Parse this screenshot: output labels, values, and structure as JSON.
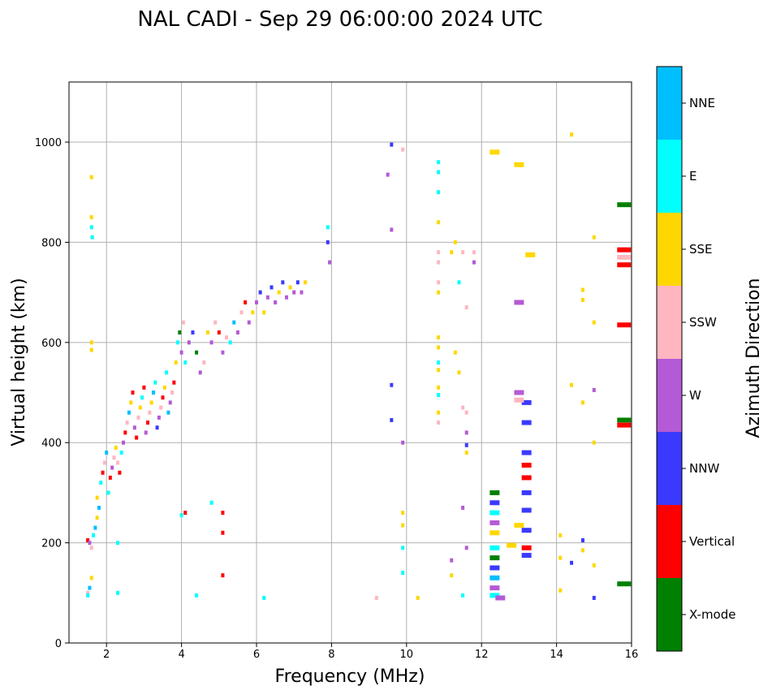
{
  "chart_data": {
    "type": "scatter",
    "title": "NAL CADI - Sep 29 06:00:00 2024 UTC",
    "xlabel": "Frequency (MHz)",
    "ylabel": "Virtual height (km)",
    "xlim": [
      1,
      16
    ],
    "ylim": [
      0,
      1120
    ],
    "xticks": [
      2,
      4,
      6,
      8,
      10,
      12,
      14,
      16
    ],
    "yticks": [
      0,
      200,
      400,
      600,
      800,
      1000
    ],
    "grid": true,
    "colorbar": {
      "label": "Azimuth Direction",
      "categories": [
        {
          "name": "X-mode",
          "color": "#008000"
        },
        {
          "name": "Vertical",
          "color": "#ff0000"
        },
        {
          "name": "NNW",
          "color": "#3a3aff"
        },
        {
          "name": "W",
          "color": "#b45ad6"
        },
        {
          "name": "SSW",
          "color": "#ffb6c1"
        },
        {
          "name": "SSE",
          "color": "#ffd700"
        },
        {
          "name": "E",
          "color": "#00ffff"
        },
        {
          "name": "NNE",
          "color": "#00bfff"
        }
      ]
    },
    "points": [
      [
        1.5,
        100,
        4
      ],
      [
        1.5,
        95,
        6
      ],
      [
        1.55,
        110,
        7
      ],
      [
        1.6,
        130,
        5
      ],
      [
        1.5,
        205,
        1
      ],
      [
        1.55,
        200,
        3
      ],
      [
        1.6,
        190,
        4
      ],
      [
        1.65,
        215,
        6
      ],
      [
        1.7,
        230,
        7
      ],
      [
        1.75,
        250,
        5
      ],
      [
        1.8,
        270,
        7
      ],
      [
        1.75,
        290,
        5
      ],
      [
        1.85,
        320,
        6
      ],
      [
        1.9,
        340,
        1
      ],
      [
        1.95,
        360,
        4
      ],
      [
        2.0,
        380,
        7
      ],
      [
        2.05,
        300,
        6
      ],
      [
        2.1,
        330,
        1
      ],
      [
        2.15,
        350,
        3
      ],
      [
        2.2,
        370,
        4
      ],
      [
        2.25,
        390,
        5
      ],
      [
        2.3,
        360,
        4
      ],
      [
        2.35,
        340,
        1
      ],
      [
        2.4,
        380,
        6
      ],
      [
        2.45,
        400,
        3
      ],
      [
        2.5,
        420,
        1
      ],
      [
        2.55,
        440,
        4
      ],
      [
        2.6,
        460,
        7
      ],
      [
        2.65,
        480,
        5
      ],
      [
        2.7,
        500,
        1
      ],
      [
        2.75,
        430,
        3
      ],
      [
        2.8,
        410,
        1
      ],
      [
        2.85,
        450,
        4
      ],
      [
        2.9,
        470,
        5
      ],
      [
        2.95,
        490,
        6
      ],
      [
        3.0,
        510,
        1
      ],
      [
        3.05,
        420,
        3
      ],
      [
        3.1,
        440,
        1
      ],
      [
        3.15,
        460,
        4
      ],
      [
        3.2,
        480,
        5
      ],
      [
        3.25,
        500,
        7
      ],
      [
        3.3,
        520,
        6
      ],
      [
        3.35,
        430,
        2
      ],
      [
        3.4,
        450,
        3
      ],
      [
        3.45,
        470,
        4
      ],
      [
        3.5,
        490,
        1
      ],
      [
        3.55,
        510,
        5
      ],
      [
        3.6,
        540,
        6
      ],
      [
        3.65,
        460,
        7
      ],
      [
        3.7,
        480,
        3
      ],
      [
        3.75,
        500,
        4
      ],
      [
        3.8,
        520,
        1
      ],
      [
        3.85,
        560,
        5
      ],
      [
        3.9,
        600,
        6
      ],
      [
        3.95,
        620,
        0
      ],
      [
        4.0,
        580,
        3
      ],
      [
        4.05,
        640,
        4
      ],
      [
        4.1,
        560,
        6
      ],
      [
        4.2,
        600,
        3
      ],
      [
        4.3,
        620,
        2
      ],
      [
        4.4,
        580,
        0
      ],
      [
        4.5,
        540,
        3
      ],
      [
        4.6,
        560,
        4
      ],
      [
        4.7,
        620,
        5
      ],
      [
        4.8,
        600,
        3
      ],
      [
        4.9,
        640,
        4
      ],
      [
        5.0,
        620,
        1
      ],
      [
        5.1,
        580,
        3
      ],
      [
        5.2,
        610,
        4
      ],
      [
        5.3,
        600,
        6
      ],
      [
        5.4,
        640,
        7
      ],
      [
        5.5,
        620,
        3
      ],
      [
        5.6,
        660,
        4
      ],
      [
        5.7,
        680,
        1
      ],
      [
        5.8,
        640,
        3
      ],
      [
        5.9,
        660,
        5
      ],
      [
        6.0,
        680,
        3
      ],
      [
        6.1,
        700,
        2
      ],
      [
        6.2,
        660,
        5
      ],
      [
        6.3,
        690,
        3
      ],
      [
        6.4,
        710,
        2
      ],
      [
        6.5,
        680,
        3
      ],
      [
        6.6,
        700,
        5
      ],
      [
        6.7,
        720,
        2
      ],
      [
        6.8,
        690,
        3
      ],
      [
        6.9,
        710,
        5
      ],
      [
        7.0,
        700,
        3
      ],
      [
        7.1,
        720,
        2
      ],
      [
        7.2,
        700,
        3
      ],
      [
        7.3,
        720,
        5
      ],
      [
        7.9,
        830,
        6
      ],
      [
        7.9,
        800,
        2
      ],
      [
        7.95,
        760,
        3
      ],
      [
        1.6,
        850,
        5
      ],
      [
        1.6,
        830,
        6
      ],
      [
        1.62,
        810,
        6
      ],
      [
        1.6,
        930,
        5
      ],
      [
        1.6,
        600,
        5
      ],
      [
        1.6,
        585,
        5
      ],
      [
        4.0,
        255,
        6
      ],
      [
        4.1,
        260,
        1
      ],
      [
        4.8,
        280,
        6
      ],
      [
        5.1,
        260,
        1
      ],
      [
        5.1,
        220,
        1
      ],
      [
        5.1,
        135,
        1
      ],
      [
        4.4,
        95,
        6
      ],
      [
        2.3,
        100,
        6
      ],
      [
        6.2,
        90,
        6
      ],
      [
        2.3,
        200,
        6
      ],
      [
        9.6,
        995,
        2
      ],
      [
        9.9,
        985,
        4
      ],
      [
        9.5,
        935,
        3
      ],
      [
        9.6,
        825,
        3
      ],
      [
        9.6,
        515,
        2
      ],
      [
        9.6,
        445,
        2
      ],
      [
        9.9,
        400,
        3
      ],
      [
        9.9,
        260,
        5
      ],
      [
        9.9,
        235,
        5
      ],
      [
        9.9,
        190,
        6
      ],
      [
        9.9,
        140,
        6
      ],
      [
        9.2,
        90,
        4
      ],
      [
        10.3,
        90,
        5
      ],
      [
        10.85,
        960,
        6
      ],
      [
        10.85,
        940,
        6
      ],
      [
        10.85,
        900,
        6
      ],
      [
        10.85,
        840,
        5
      ],
      [
        10.85,
        780,
        4
      ],
      [
        10.85,
        760,
        4
      ],
      [
        10.85,
        720,
        4
      ],
      [
        10.85,
        700,
        5
      ],
      [
        10.85,
        610,
        5
      ],
      [
        10.85,
        590,
        5
      ],
      [
        10.85,
        560,
        6
      ],
      [
        10.85,
        545,
        5
      ],
      [
        10.85,
        510,
        5
      ],
      [
        10.85,
        495,
        6
      ],
      [
        10.85,
        460,
        5
      ],
      [
        10.85,
        440,
        4
      ],
      [
        11.3,
        800,
        5
      ],
      [
        11.2,
        780,
        5
      ],
      [
        11.5,
        780,
        4
      ],
      [
        11.8,
        780,
        4
      ],
      [
        11.8,
        760,
        3
      ],
      [
        11.6,
        670,
        4
      ],
      [
        11.4,
        720,
        6
      ],
      [
        11.3,
        580,
        5
      ],
      [
        11.4,
        540,
        5
      ],
      [
        11.5,
        470,
        4
      ],
      [
        11.6,
        460,
        4
      ],
      [
        11.6,
        420,
        3
      ],
      [
        11.6,
        395,
        2
      ],
      [
        11.6,
        380,
        5
      ],
      [
        11.5,
        270,
        3
      ],
      [
        11.6,
        190,
        3
      ],
      [
        11.2,
        165,
        3
      ],
      [
        11.2,
        135,
        5
      ],
      [
        11.5,
        95,
        6
      ],
      [
        12.35,
        300,
        0
      ],
      [
        12.35,
        280,
        2
      ],
      [
        12.35,
        260,
        6
      ],
      [
        12.35,
        240,
        3
      ],
      [
        12.35,
        220,
        5
      ],
      [
        12.35,
        190,
        6
      ],
      [
        12.35,
        170,
        0
      ],
      [
        12.35,
        150,
        2
      ],
      [
        12.35,
        130,
        7
      ],
      [
        12.35,
        110,
        3
      ],
      [
        12.35,
        95,
        6
      ],
      [
        12.35,
        980,
        5
      ],
      [
        12.5,
        90,
        3
      ],
      [
        13.2,
        480,
        2
      ],
      [
        13.2,
        440,
        2
      ],
      [
        13.2,
        380,
        2
      ],
      [
        13.2,
        355,
        1
      ],
      [
        13.2,
        330,
        1
      ],
      [
        13.2,
        300,
        2
      ],
      [
        13.2,
        265,
        2
      ],
      [
        13.2,
        225,
        2
      ],
      [
        13.2,
        190,
        1
      ],
      [
        13.2,
        175,
        2
      ],
      [
        13.0,
        500,
        3
      ],
      [
        13.0,
        485,
        4
      ],
      [
        13.0,
        680,
        3
      ],
      [
        13.0,
        955,
        5
      ],
      [
        13.0,
        235,
        5
      ],
      [
        12.8,
        195,
        5
      ],
      [
        14.1,
        215,
        5
      ],
      [
        14.1,
        170,
        5
      ],
      [
        14.1,
        105,
        5
      ],
      [
        14.4,
        1015,
        5
      ],
      [
        14.4,
        160,
        2
      ],
      [
        14.7,
        705,
        5
      ],
      [
        14.7,
        685,
        5
      ],
      [
        14.4,
        515,
        5
      ],
      [
        14.7,
        480,
        5
      ],
      [
        15.0,
        505,
        3
      ],
      [
        15.0,
        400,
        5
      ],
      [
        14.7,
        205,
        2
      ],
      [
        14.7,
        185,
        5
      ],
      [
        15.0,
        155,
        5
      ],
      [
        15.0,
        90,
        2
      ],
      [
        15.0,
        810,
        5
      ],
      [
        15.0,
        640,
        5
      ],
      [
        13.3,
        775,
        5
      ],
      [
        15.8,
        875,
        0
      ],
      [
        15.8,
        785,
        1
      ],
      [
        15.8,
        770,
        4
      ],
      [
        15.8,
        755,
        1
      ],
      [
        15.8,
        635,
        1
      ],
      [
        15.8,
        445,
        0
      ],
      [
        15.8,
        435,
        1
      ],
      [
        15.8,
        118,
        0
      ]
    ]
  }
}
